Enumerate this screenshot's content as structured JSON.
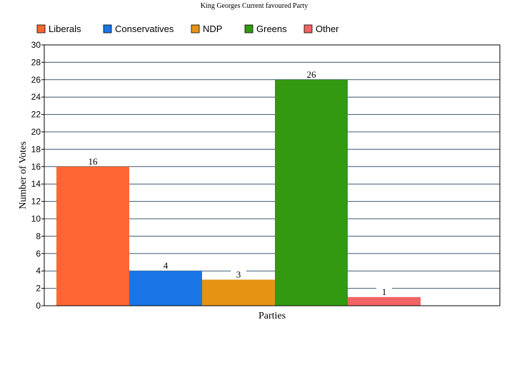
{
  "chart_data": {
    "type": "bar",
    "title": "King Georges Current favoured Party",
    "xlabel": "Parties",
    "ylabel": "Number of Votes",
    "ylim": [
      0,
      30
    ],
    "ytick_step": 2,
    "grid": true,
    "legend_position": "top",
    "series": [
      {
        "name": "Liberals",
        "value": 16,
        "color": "#ff6633"
      },
      {
        "name": "Conservatives",
        "value": 4,
        "color": "#1a75e6"
      },
      {
        "name": "NDP",
        "value": 3,
        "color": "#e69314"
      },
      {
        "name": "Greens",
        "value": 26,
        "color": "#339911"
      },
      {
        "name": "Other",
        "value": 1,
        "color": "#f26363"
      }
    ]
  }
}
